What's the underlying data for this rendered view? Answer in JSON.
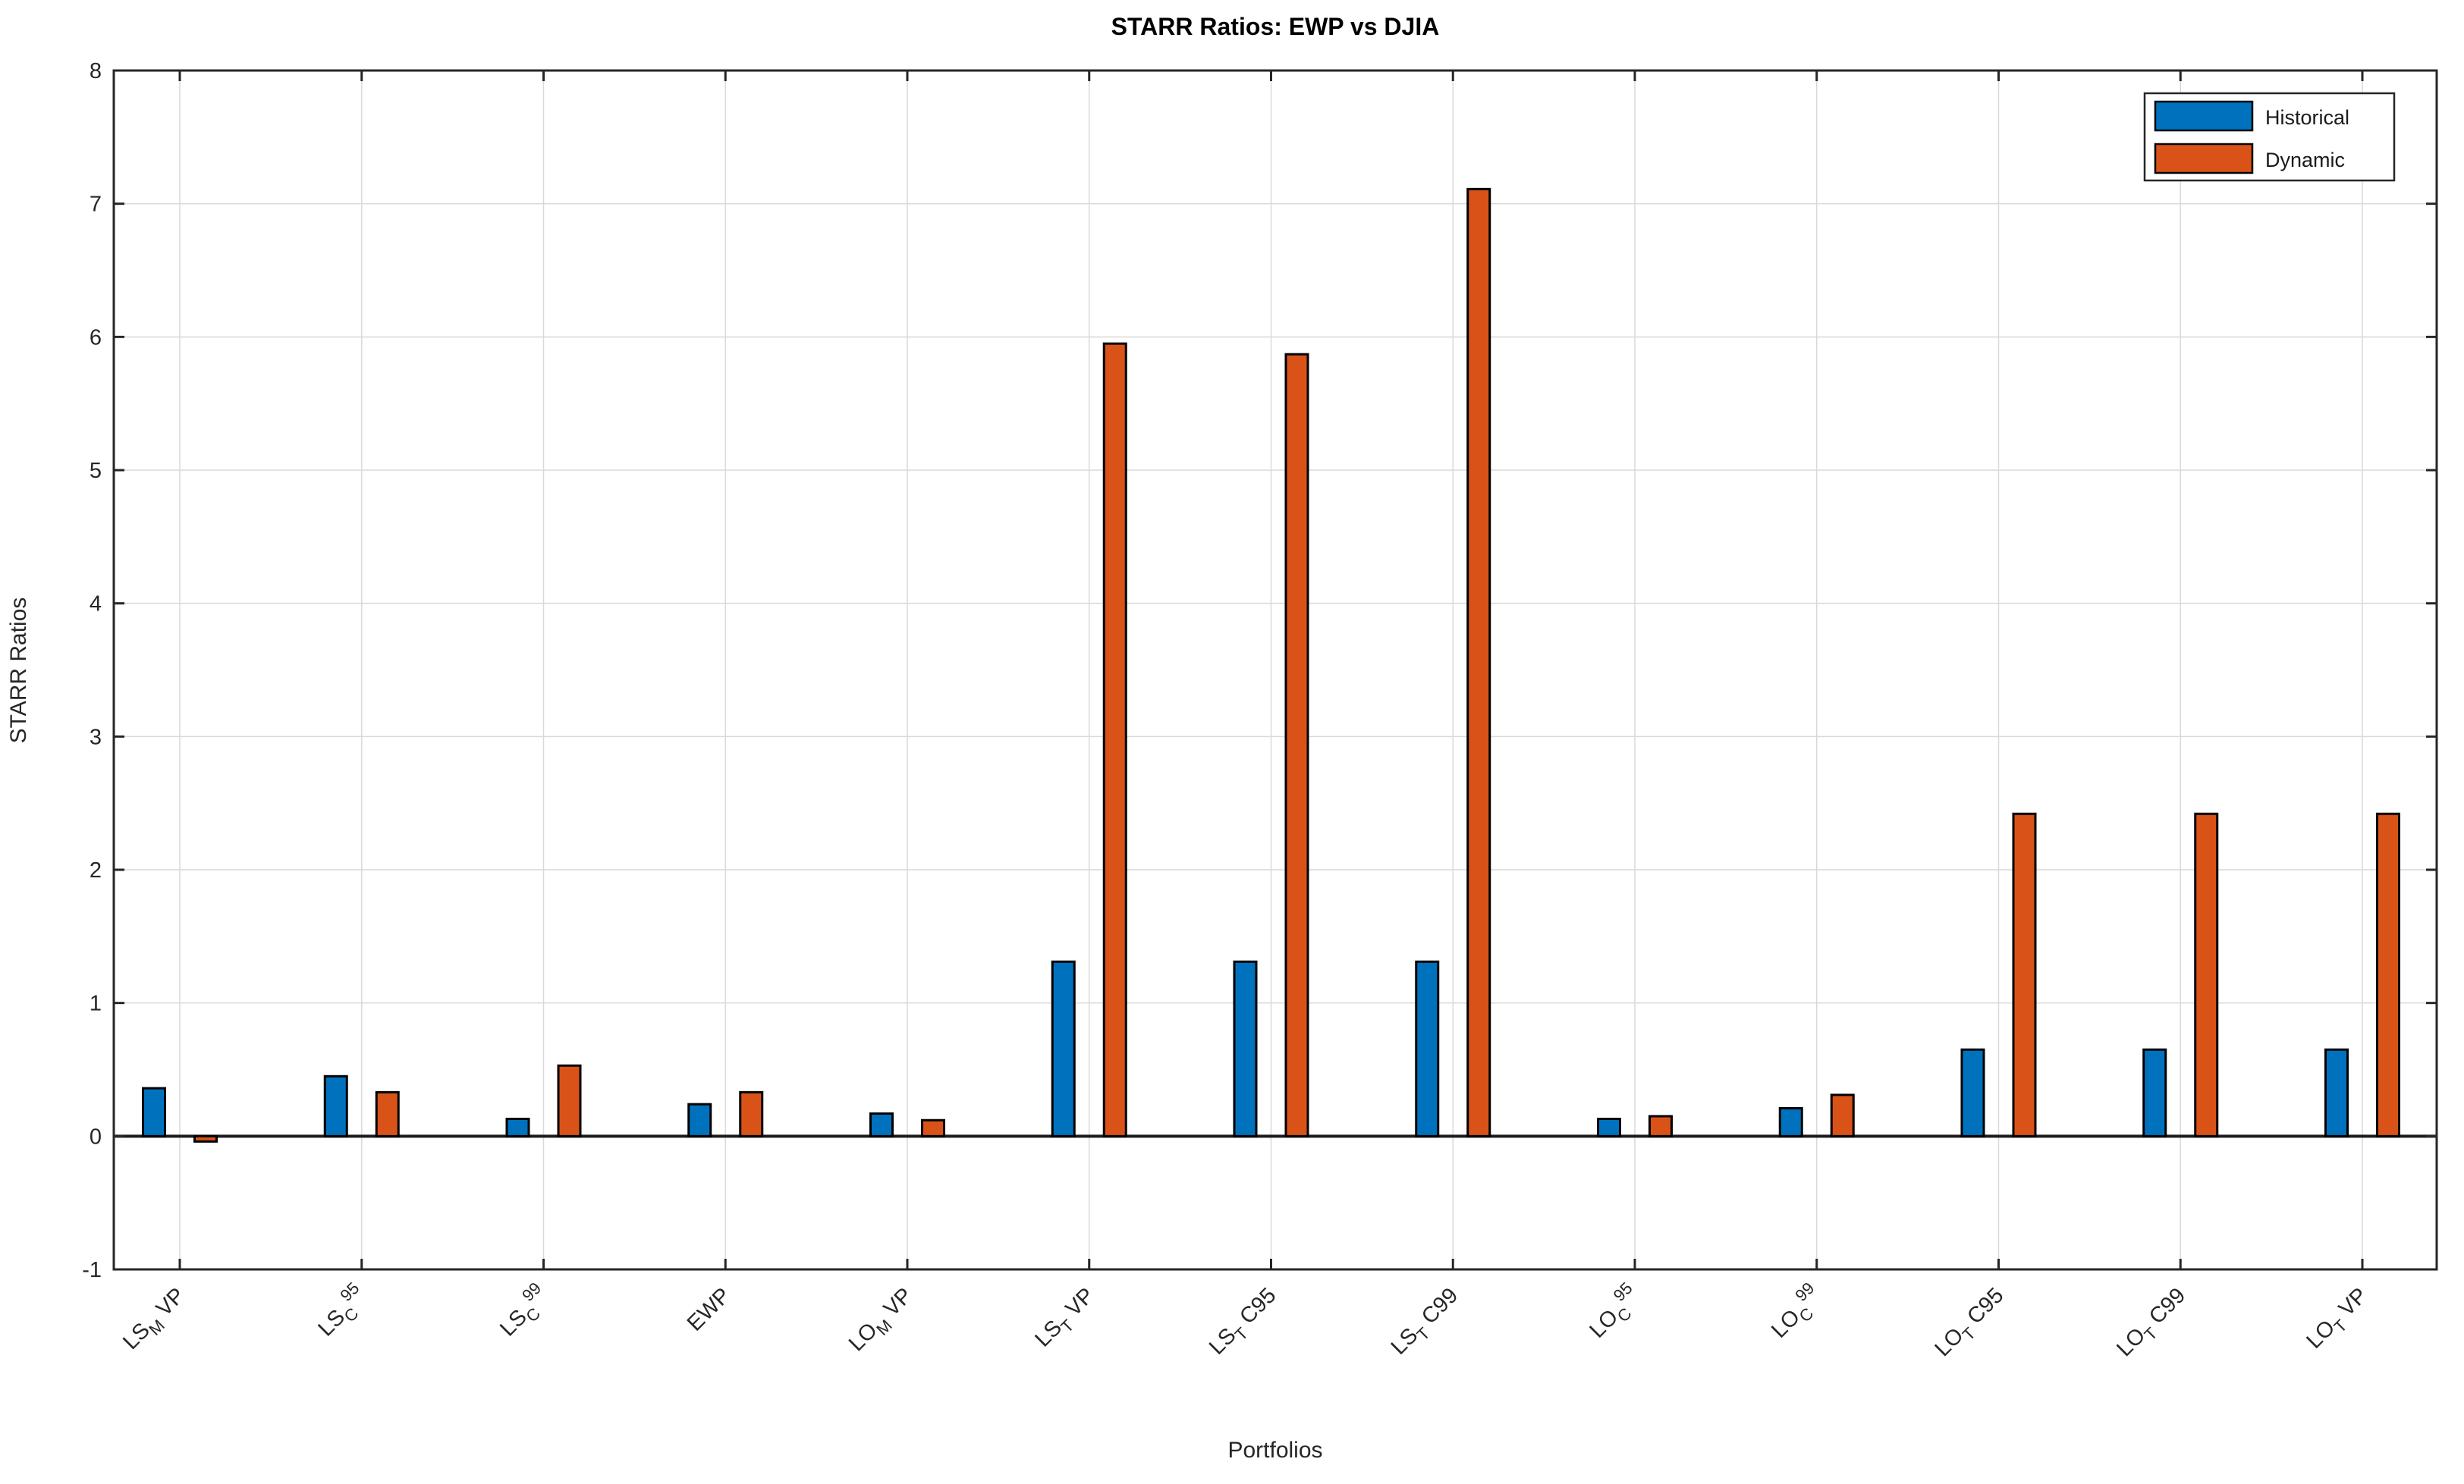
{
  "chart_data": {
    "type": "bar",
    "title": "STARR Ratios: EWP vs DJIA",
    "xlabel": "Portfolios",
    "ylabel": "STARR Ratios",
    "ylim": [
      -1,
      8
    ],
    "ytick_step": 1,
    "grid": true,
    "legend": {
      "position": "top-right"
    },
    "categories": [
      "LS_M VP",
      "LS_C^95",
      "LS_C^99",
      "EWP",
      "LO_M VP",
      "LS_T VP",
      "LS_T C95",
      "LS_T C99",
      "LO_C^95",
      "LO_C^99",
      "LO_T C95",
      "LO_T C99",
      "LO_T VP"
    ],
    "category_segments": [
      [
        {
          "t": "LS"
        },
        {
          "t": "M",
          "style": "sub"
        },
        {
          "t": " VP"
        }
      ],
      [
        {
          "t": "LS"
        },
        {
          "t": "C",
          "style": "sub"
        },
        {
          "t": "95",
          "style": "sup"
        }
      ],
      [
        {
          "t": "LS"
        },
        {
          "t": "C",
          "style": "sub"
        },
        {
          "t": "99",
          "style": "sup"
        }
      ],
      [
        {
          "t": "EWP"
        }
      ],
      [
        {
          "t": "LO"
        },
        {
          "t": "M",
          "style": "sub"
        },
        {
          "t": " VP"
        }
      ],
      [
        {
          "t": "LS"
        },
        {
          "t": "T",
          "style": "sub"
        },
        {
          "t": " VP"
        }
      ],
      [
        {
          "t": "LS"
        },
        {
          "t": "T",
          "style": "sub"
        },
        {
          "t": " C95"
        }
      ],
      [
        {
          "t": "LS"
        },
        {
          "t": "T",
          "style": "sub"
        },
        {
          "t": " C99"
        }
      ],
      [
        {
          "t": "LO"
        },
        {
          "t": "C",
          "style": "sub"
        },
        {
          "t": "95",
          "style": "sup"
        }
      ],
      [
        {
          "t": "LO"
        },
        {
          "t": "C",
          "style": "sub"
        },
        {
          "t": "99",
          "style": "sup"
        }
      ],
      [
        {
          "t": "LO"
        },
        {
          "t": "T",
          "style": "sub"
        },
        {
          "t": " C95"
        }
      ],
      [
        {
          "t": "LO"
        },
        {
          "t": "T",
          "style": "sub"
        },
        {
          "t": " C99"
        }
      ],
      [
        {
          "t": "LO"
        },
        {
          "t": "T",
          "style": "sub"
        },
        {
          "t": " VP"
        }
      ]
    ],
    "series": [
      {
        "name": "Historical",
        "color": "#0072BD",
        "values": [
          0.36,
          0.45,
          0.13,
          0.24,
          0.17,
          1.31,
          1.31,
          1.31,
          0.13,
          0.21,
          0.65,
          0.65,
          0.65
        ]
      },
      {
        "name": "Dynamic",
        "color": "#D95319",
        "values": [
          -0.04,
          0.33,
          0.53,
          0.33,
          0.12,
          5.95,
          5.87,
          7.11,
          0.15,
          0.31,
          2.42,
          2.42,
          2.42
        ]
      }
    ],
    "colors": {
      "axis": "#262626",
      "grid": "#d9d9d9",
      "baseline": "#1a1a1a",
      "bar_edge": "#000000",
      "background": "#ffffff",
      "title": "#000000"
    }
  }
}
